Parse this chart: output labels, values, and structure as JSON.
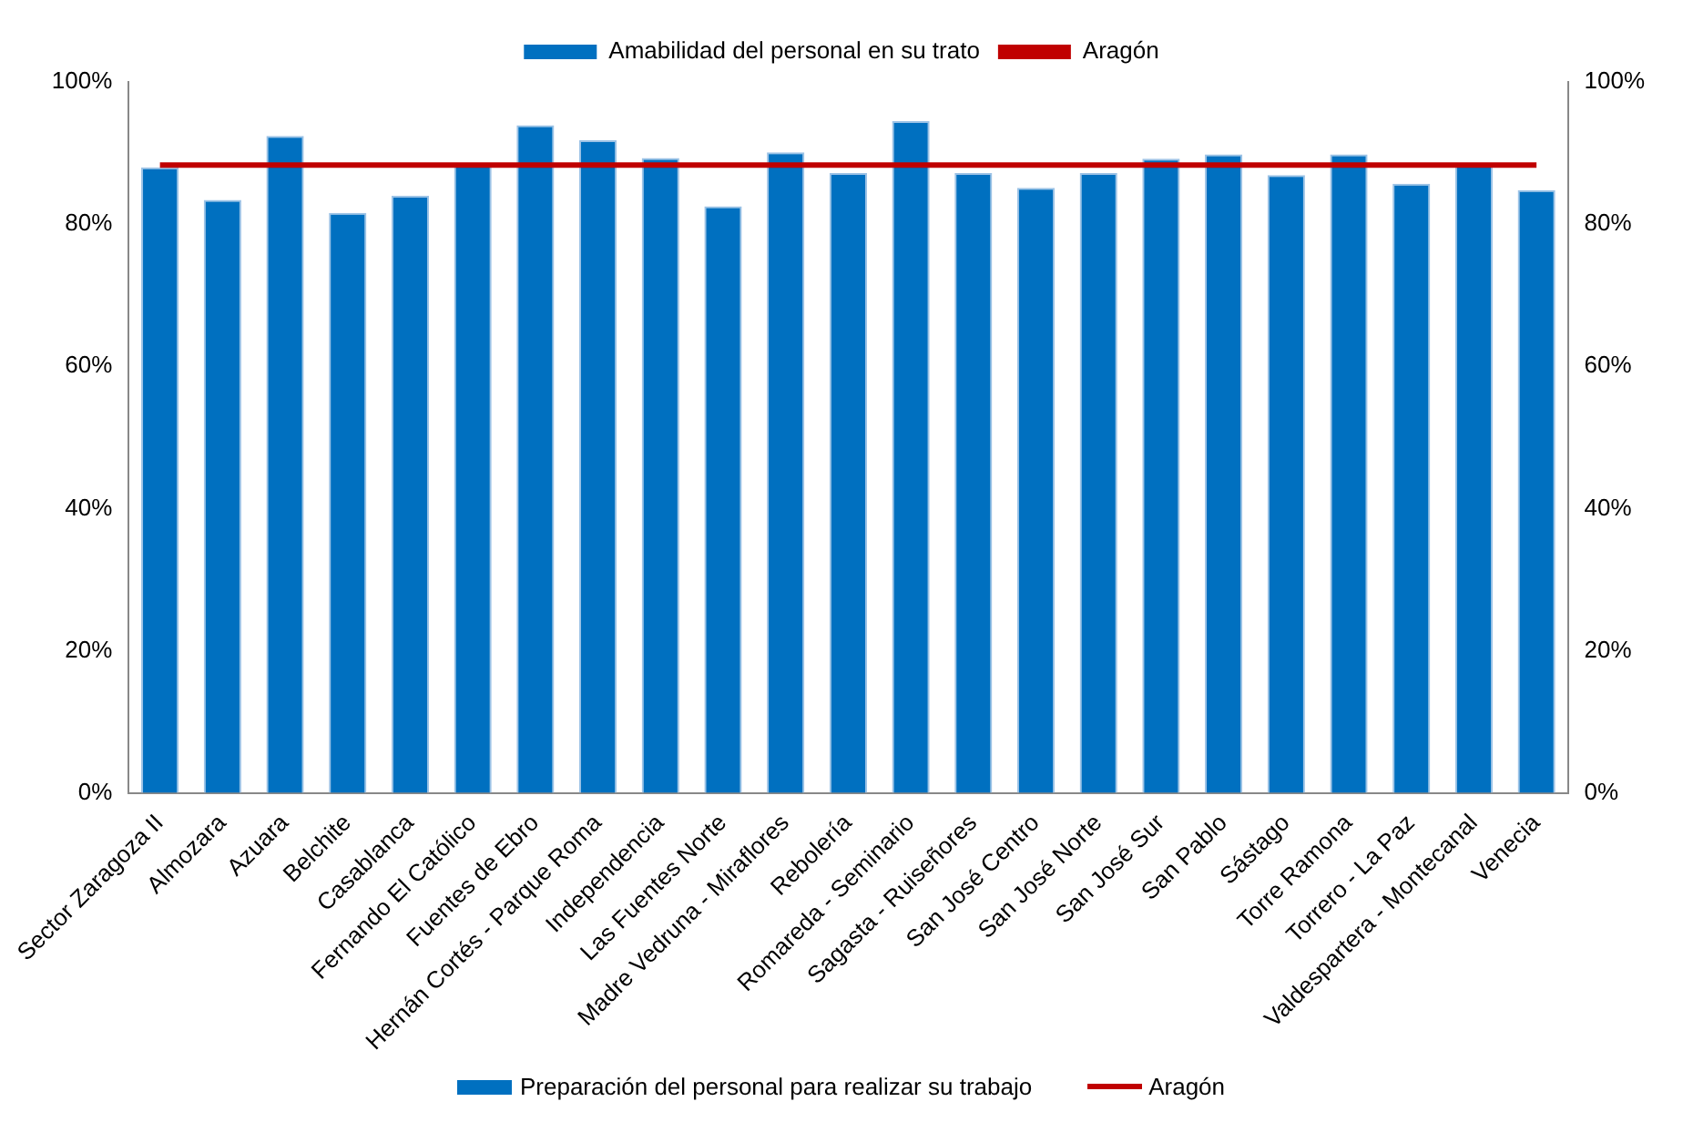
{
  "chart_data": {
    "type": "bar",
    "categories": [
      "Sector Zaragoza II",
      "Almozara",
      "Azuara",
      "Belchite",
      "Casablanca",
      "Fernando El Católico",
      "Fuentes de Ebro",
      "Hernán Cortés - Parque Roma",
      "Independencia",
      "Las Fuentes Norte",
      "Madre Vedruna - Miraflores",
      "Rebolería",
      "Romareda - Seminario",
      "Sagasta - Ruiseñores",
      "San José Centro",
      "San José Norte",
      "San José Sur",
      "San Pablo",
      "Sástago",
      "Torre Ramona",
      "Torrero - La Paz",
      "Valdespartera - Montecanal",
      "Venecia"
    ],
    "series": [
      {
        "name": "Amabilidad del personal en su trato",
        "color": "#0070c0",
        "values": [
          88.0,
          83.4,
          92.4,
          81.6,
          84.0,
          88.6,
          93.9,
          91.8,
          89.3,
          82.5,
          90.1,
          87.2,
          94.5,
          87.2,
          85.1,
          87.2,
          89.2,
          89.8,
          86.9,
          89.8,
          85.7,
          88.3,
          84.8
        ]
      },
      {
        "name": "Aragón",
        "color": "#c00000",
        "type": "line",
        "values": [
          88.3,
          88.3,
          88.3,
          88.3,
          88.3,
          88.3,
          88.3,
          88.3,
          88.3,
          88.3,
          88.3,
          88.3,
          88.3,
          88.3,
          88.3,
          88.3,
          88.3,
          88.3,
          88.3,
          88.3,
          88.3,
          88.3,
          88.3
        ]
      }
    ],
    "ylim": [
      0,
      100
    ],
    "yticks": [
      {
        "value": 0,
        "label": "0%"
      },
      {
        "value": 20,
        "label": "20%"
      },
      {
        "value": 40,
        "label": "40%"
      },
      {
        "value": 60,
        "label": "60%"
      },
      {
        "value": 80,
        "label": "80%"
      },
      {
        "value": 100,
        "label": "100%"
      }
    ],
    "y2lim": [
      0,
      100
    ],
    "y2ticks": [
      {
        "value": 0,
        "label": "0%"
      },
      {
        "value": 20,
        "label": "20%"
      },
      {
        "value": 40,
        "label": "40%"
      },
      {
        "value": 60,
        "label": "60%"
      },
      {
        "value": 80,
        "label": "80%"
      },
      {
        "value": 100,
        "label": "100%"
      }
    ],
    "grid": false,
    "legend": "top",
    "marker": "none",
    "line_style": "solid",
    "annotations": [
      "Preparación del personal para realizar su trabajo",
      "Aragón"
    ]
  }
}
